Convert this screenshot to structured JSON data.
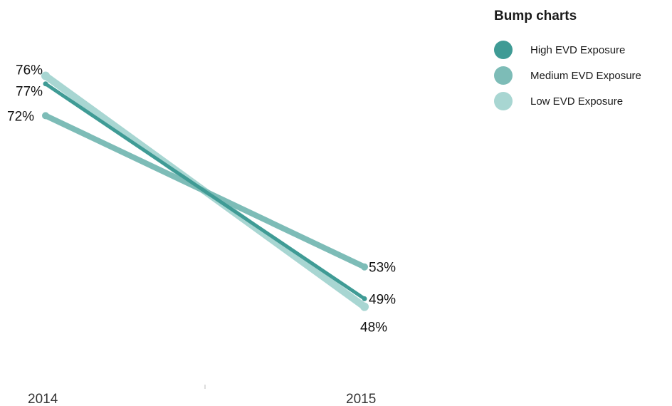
{
  "legend": {
    "title": "Bump charts"
  },
  "chart_data": {
    "type": "line",
    "subtype": "bump",
    "title": "Bump charts",
    "x": [
      "2014",
      "2015"
    ],
    "series": [
      {
        "name": "High EVD Exposure",
        "values": [
          76,
          49
        ],
        "labels": [
          "76%",
          "49%"
        ],
        "color": "#3f9b95"
      },
      {
        "name": "Medium EVD Exposure",
        "values": [
          72,
          53
        ],
        "labels": [
          "72%",
          "53%"
        ],
        "color": "#7dbcb7"
      },
      {
        "name": "Low EVD Exposure",
        "values": [
          77,
          48
        ],
        "labels": [
          "77%",
          "48%"
        ],
        "color": "#a8d6d2"
      }
    ],
    "ylim": [
      40,
      80
    ],
    "y_axis_visible": false,
    "grid": false,
    "legend_position": "top-right"
  }
}
